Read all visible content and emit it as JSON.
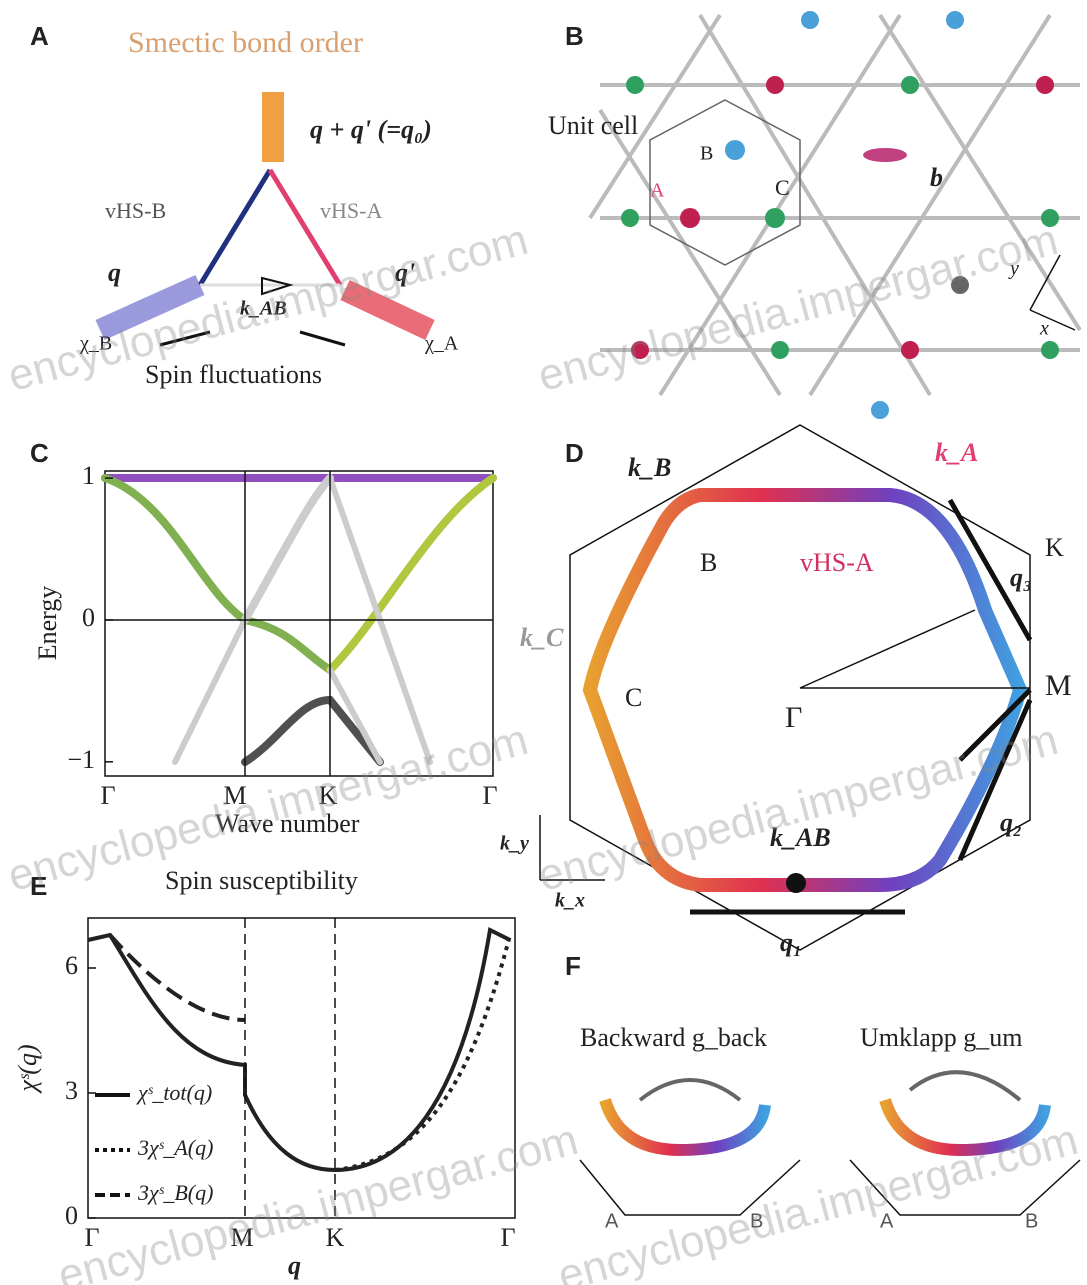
{
  "watermark": "encyclopedia.impergar.com",
  "panels": {
    "a": {
      "label": "A",
      "title": "Smectic bond order",
      "q_sum": "q + q' (=q₀)",
      "vhs_b": "vHS-B",
      "vhs_a": "vHS-A",
      "q": "q",
      "q_prime": "q'",
      "k_ab": "k_AB",
      "chi_left": "χ_B",
      "chi_right": "χ_A",
      "caption": "Spin fluctuations"
    },
    "b": {
      "label": "B",
      "unit_cell": "Unit cell",
      "sites": [
        "A",
        "B",
        "C"
      ],
      "bond": "b",
      "axes": [
        "y",
        "x"
      ]
    },
    "c": {
      "label": "C",
      "ylabel": "Energy",
      "xlabel": "Wave number",
      "ylim": [
        -1.1,
        1.05
      ],
      "yticks": [
        {
          "value": 1,
          "label": "1"
        },
        0,
        {
          "value": -1,
          "label": "−1"
        }
      ],
      "categories": [
        "Γ",
        "M",
        "K",
        "Γ"
      ]
    },
    "d": {
      "label": "D",
      "k_b": "k_B",
      "k_a": "k_A",
      "b": "B",
      "vhs_a": "vHS-A",
      "q3": "q₃",
      "k": "K",
      "k_c": "k_C",
      "c": "C",
      "m": "M",
      "gamma": "Γ",
      "k_ab": "k_AB",
      "q2": "q₂",
      "q1": "q₁",
      "ky": "k_y",
      "kx": "k_x"
    },
    "e": {
      "label": "E",
      "title": "Spin susceptibility",
      "ylabel": "χˢ(q)",
      "xlabel": "q",
      "ylim": [
        0,
        7.2
      ],
      "yticks": [
        0,
        3,
        6
      ],
      "categories": [
        "Γ",
        "M",
        "K",
        "Γ"
      ],
      "legend": [
        "χˢ_tot(q)",
        "3χˢ_A(q)",
        "3χˢ_B(q)"
      ]
    },
    "f": {
      "label": "F",
      "backward": "Backward g_back",
      "umklapp": "Umklapp g_um",
      "sites": [
        "A",
        "B"
      ]
    }
  }
}
